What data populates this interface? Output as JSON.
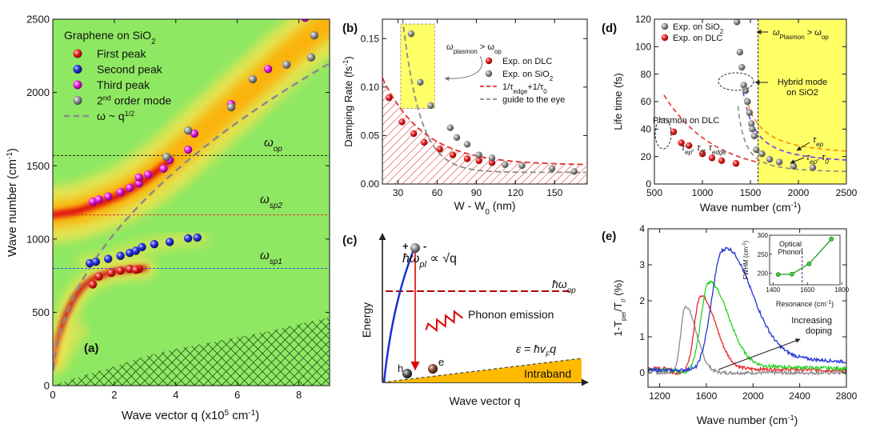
{
  "colors": {
    "red": "#e8262a",
    "blue": "#2533d8",
    "magenta": "#ee1fe6",
    "gray": "#8d8d8d",
    "green_bg": "#8fe862",
    "orange": "#ff8c00",
    "yellow": "#ffff66",
    "hatch": "#1c6e1c",
    "dash_gray": "#8a8a8a",
    "dash_red": "#e23030",
    "dash_blue": "#3050e0",
    "dash_black": "#222222",
    "intraband": "#ffba00",
    "darkred": "#b30000",
    "violet": "#7a34f0",
    "dgreen": "#1e9a20"
  },
  "chart_data": [
    {
      "id": "a",
      "type": "scatter",
      "panel_label": "(a)",
      "title": "Graphene on SiO",
      "title_sub": "2",
      "xlabel": "Wave vector q (x10",
      "xlabel_sup": "5",
      "xlabel_tail": " cm",
      "xlabel_sup2": "-1",
      "xlabel_end": ")",
      "ylabel": "Wave number (cm",
      "ylabel_sup": "-1",
      "ylabel_end": ")",
      "xlim": [
        0,
        9
      ],
      "ylim": [
        0,
        2500
      ],
      "xticks": [
        "0",
        "2",
        "4",
        "6",
        "8"
      ],
      "xtick_values": [
        0,
        2,
        4,
        6,
        8
      ],
      "yticks": [
        "0",
        "500",
        "1000",
        "1500",
        "2000",
        "2500"
      ],
      "ytick_values": [
        0,
        500,
        1000,
        1500,
        2000,
        2500
      ],
      "hlines": [
        {
          "y": 1570,
          "label": "ω",
          "sub": "op",
          "color": "#222222"
        },
        {
          "y": 1165,
          "label": "ω",
          "sub": "sp2",
          "color": "#e23030"
        },
        {
          "y": 800,
          "label": "ω",
          "sub": "sp1",
          "color": "#3050e0"
        }
      ],
      "series": [
        {
          "name": "First peak",
          "color": "#e8262a",
          "x": [
            1.3,
            1.5,
            1.9,
            2.2,
            2.5,
            2.8,
            2.7
          ],
          "y": [
            690,
            745,
            770,
            785,
            795,
            795,
            790
          ]
        },
        {
          "name": "Second peak",
          "color": "#2533d8",
          "x": [
            1.2,
            1.4,
            1.8,
            2.2,
            2.5,
            2.7,
            2.9,
            3.3,
            3.8,
            4.4,
            4.7
          ],
          "y": [
            835,
            845,
            865,
            885,
            905,
            920,
            945,
            965,
            980,
            1005,
            1010
          ]
        },
        {
          "name": "Third peak",
          "color": "#ee1fe6",
          "x": [
            1.3,
            1.5,
            1.8,
            2.2,
            2.5,
            2.8,
            2.8,
            3.1,
            3.6,
            3.8,
            4.4,
            4.6,
            5.8,
            7.0,
            8.2
          ],
          "y": [
            1255,
            1270,
            1290,
            1320,
            1350,
            1380,
            1420,
            1440,
            1480,
            1540,
            1610,
            1720,
            1920,
            2160,
            2510
          ]
        },
        {
          "name": "2nd order mode",
          "name_sup": "nd",
          "name_pre": "2",
          "name_post": " order mode",
          "color": "#8d8d8d",
          "x": [
            3.7,
            4.4,
            5.8,
            6.5,
            7.6,
            8.4,
            8.5
          ],
          "y": [
            1560,
            1740,
            1900,
            2090,
            2190,
            2240,
            2390
          ]
        }
      ],
      "fit_label": "ω ~ q",
      "fit_label_sup": "1/2",
      "fit": {
        "coef": 733,
        "exp": 0.5
      }
    },
    {
      "id": "b",
      "type": "scatter",
      "panel_label": "(b)",
      "xlabel": "W - W",
      "xlabel_sub": "0",
      "xlabel_end": " (nm)",
      "ylabel": "Damping Rate (fs",
      "ylabel_sup": "-1",
      "ylabel_end": ")",
      "xlim": [
        18,
        175
      ],
      "ylim": [
        0,
        0.17
      ],
      "xticks": [
        "30",
        "60",
        "90",
        "120",
        "150"
      ],
      "xtick_values": [
        30,
        60,
        90,
        120,
        150
      ],
      "yticks": [
        "0.00",
        "0.05",
        "0.10",
        "0.15"
      ],
      "ytick_values": [
        0,
        0.05,
        0.1,
        0.15
      ],
      "series": [
        {
          "name": "Exp. on DLC",
          "color": "#e8262a",
          "x": [
            23,
            33,
            42,
            50,
            62,
            72,
            83,
            92,
            102
          ],
          "y": [
            0.089,
            0.064,
            0.052,
            0.043,
            0.036,
            0.03,
            0.026,
            0.024,
            0.022
          ]
        },
        {
          "name": "Exp. on SiO",
          "name_sub": "2",
          "color": "#8d8d8d",
          "x": [
            40,
            47,
            55,
            70,
            75,
            83,
            92,
            102,
            112,
            125,
            148,
            165
          ],
          "y": [
            0.155,
            0.105,
            0.081,
            0.058,
            0.048,
            0.041,
            0.03,
            0.027,
            0.02,
            0.019,
            0.016,
            0.013
          ]
        }
      ],
      "fit_labels": {
        "red": "1/τ",
        "red_sub1": "edge",
        "red_mid": "+1/τ",
        "red_sub2": "0",
        "gray": "guide to the eye"
      },
      "annotation": "ω",
      "annotation_sub": "plasmon",
      "annotation_mid": " > ω",
      "annotation_sub2": "op"
    },
    {
      "id": "c",
      "type": "diagram",
      "panel_label": "(c)",
      "xlabel": "Wave vector q",
      "ylabel": "Energy",
      "dispersion_label": "ħω",
      "dispersion_sub": "pl",
      "dispersion_tail": " ∝ √q",
      "op_label": "ħω",
      "op_sub": "op",
      "emission_label": "Phonon emission",
      "intraband_eq": "ε = ħv",
      "intraband_eq_sub": "F",
      "intraband_eq_tail": "q",
      "intraband_label": "Intraband",
      "hole_label": "h",
      "electron_label": "e",
      "plus_label": "+",
      "minus_label": "-"
    },
    {
      "id": "d",
      "type": "scatter",
      "panel_label": "(d)",
      "xlabel": "Wave number (cm",
      "xlabel_sup": "-1",
      "xlabel_end": ")",
      "ylabel": "Life time (fs)",
      "xlim": [
        500,
        2500
      ],
      "ylim": [
        0,
        120
      ],
      "xticks": [
        "500",
        "1000",
        "1500",
        "2000",
        "2500"
      ],
      "xtick_values": [
        500,
        1000,
        1500,
        2000,
        2500
      ],
      "yticks": [
        "0",
        "20",
        "40",
        "60",
        "80",
        "100",
        "120"
      ],
      "ytick_values": [
        0,
        20,
        40,
        60,
        80,
        100,
        120
      ],
      "series": [
        {
          "name": "Exp. on SiO",
          "name_sub": "2",
          "color": "#8d8d8d",
          "x": [
            1360,
            1390,
            1410,
            1430,
            1450,
            1470,
            1490,
            1510,
            1520,
            1540,
            1560,
            1620,
            1700,
            1800,
            1950,
            2150
          ],
          "y": [
            118,
            96,
            85,
            72,
            68,
            60,
            52,
            44,
            40,
            35,
            25,
            22,
            18,
            16,
            13,
            12
          ]
        },
        {
          "name": "Exp. on DLC",
          "color": "#e8262a",
          "x": [
            700,
            780,
            860,
            1000,
            1100,
            1200,
            1350
          ],
          "y": [
            38,
            30,
            28,
            22,
            19,
            17,
            15
          ]
        }
      ],
      "vline_x": 1580,
      "shade_label": "ω",
      "shade_sub": "Plasmon",
      "shade_mid": " > ω",
      "shade_sub2": "op",
      "hybrid_label_line1": "Hybrid mode",
      "hybrid_label_line2": "on SiO2",
      "plasmon_label": "Plasmon on DLC",
      "tau_combo": "τ",
      "tau_combo_subs": [
        "ep",
        ",",
        "0",
        ",",
        "edge"
      ],
      "tau_ep": "τ",
      "tau_ep_sub": "ep",
      "tau_ep0": "τ",
      "tau_ep0_subs": [
        "ep",
        ", τ",
        "0"
      ]
    },
    {
      "id": "e",
      "type": "line",
      "panel_label": "(e)",
      "xlabel": "Wave number (cm",
      "xlabel_sup": "-1",
      "xlabel_end": ")",
      "ylabel": "1-T",
      "ylabel_sub1": "per",
      "ylabel_mid": "/T",
      "ylabel_sub2": "//",
      "ylabel_end": " (%)",
      "xlim": [
        1100,
        2800
      ],
      "ylim": [
        -0.4,
        4
      ],
      "xticks": [
        "1200",
        "1600",
        "2000",
        "2400",
        "2800"
      ],
      "xtick_values": [
        1200,
        1600,
        2000,
        2400,
        2800
      ],
      "yticks": [
        "0",
        "1",
        "2",
        "3",
        "4"
      ],
      "ytick_values": [
        0,
        1,
        2,
        3,
        4
      ],
      "series": [
        {
          "name": "gray",
          "color": "#8a8a8a",
          "peak": 1420,
          "amp": 1.85,
          "width": 70,
          "tail": 0.0
        },
        {
          "name": "red",
          "color": "#e8262a",
          "peak": 1550,
          "amp": 2.15,
          "width": 95,
          "tail": 0.15
        },
        {
          "name": "green",
          "color": "#22d622",
          "peak": 1620,
          "amp": 2.5,
          "width": 120,
          "tail": 0.25
        },
        {
          "name": "blue",
          "color": "#2533d8",
          "peak": 1740,
          "amp": 3.4,
          "width": 170,
          "tail": 0.6
        }
      ],
      "annotation_line1": "Increasing",
      "annotation_line2": "doping",
      "inset": {
        "title_line1": "Optical",
        "title_line2": "Phonon",
        "xlabel": "Resonance (cm",
        "xlabel_sup": "-1",
        "xlabel_end": ")",
        "ylabel": "FWHM (cm",
        "ylabel_sup": "-1",
        "ylabel_end": ")",
        "xlim": [
          1380,
          1790
        ],
        "ylim": [
          170,
          300
        ],
        "xticks": [
          "1400",
          "1600",
          "1800"
        ],
        "xtick_values": [
          1400,
          1600,
          1800
        ],
        "yticks": [
          "200",
          "250",
          "300"
        ],
        "ytick_values": [
          200,
          250,
          300
        ],
        "x": [
          1430,
          1510,
          1610,
          1740
        ],
        "y": [
          197,
          198,
          225,
          290
        ],
        "vline_x": 1570
      }
    }
  ]
}
